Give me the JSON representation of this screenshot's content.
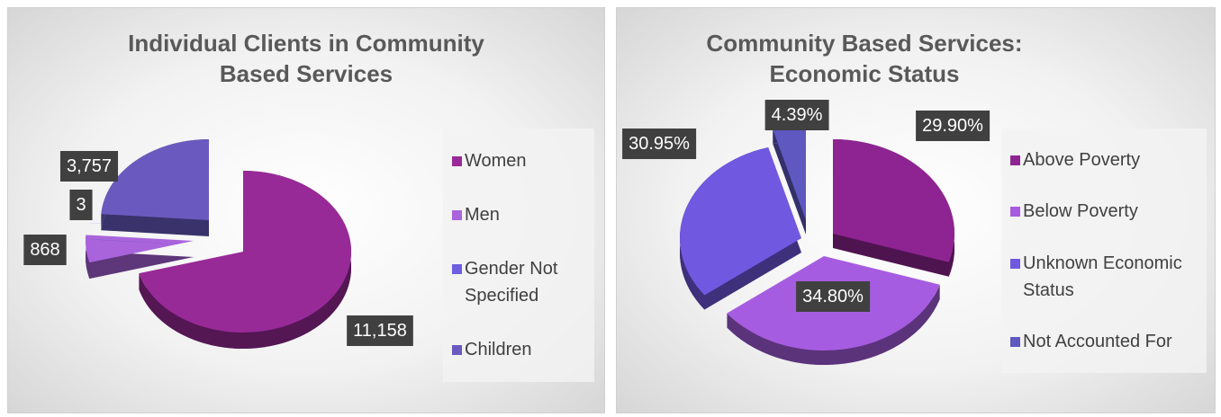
{
  "chart_data": [
    {
      "type": "pie",
      "title": "Individual Clients in Community Based Services",
      "categories": [
        "Women",
        "Men",
        "Gender Not Specified",
        "Children"
      ],
      "values": [
        11158,
        868,
        3,
        3757
      ],
      "value_labels": [
        "11,158",
        "868",
        "3",
        "3,757"
      ],
      "colors": [
        "#982a98",
        "#a964dc",
        "#6e5ee0",
        "#6a5ac0"
      ],
      "legend": "right"
    },
    {
      "type": "pie",
      "title": "Community Based Services: Economic Status",
      "categories": [
        "Above Poverty",
        "Below Poverty",
        "Unknown Economic Status",
        "Not Accounted For"
      ],
      "values": [
        29.9,
        34.8,
        30.95,
        4.39
      ],
      "value_labels": [
        "29.90%",
        "34.80%",
        "30.95%",
        "4.39%"
      ],
      "colors": [
        "#8e2492",
        "#a65ce0",
        "#7058e0",
        "#5e58c0"
      ],
      "legend": "right"
    }
  ]
}
